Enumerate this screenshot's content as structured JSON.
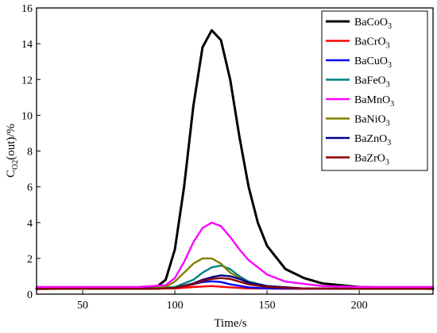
{
  "chart_data": {
    "type": "line",
    "xlabel": "Time/s",
    "ylabel": {
      "main": "C",
      "sub": "O2",
      "rest": "(out)/%"
    },
    "xlim": [
      25,
      240
    ],
    "ylim": [
      0,
      16
    ],
    "xticks": [
      50,
      100,
      150,
      200
    ],
    "yticks": [
      0,
      2,
      4,
      6,
      8,
      10,
      12,
      14,
      16
    ],
    "grid": false,
    "legend_position": "top-right",
    "series": [
      {
        "name": "BaCoO3",
        "label_main": "BaCoO",
        "label_sub": "3",
        "color": "#000000",
        "x": [
          25,
          80,
          90,
          95,
          100,
          105,
          110,
          115,
          120,
          125,
          130,
          135,
          140,
          145,
          150,
          160,
          170,
          180,
          200,
          220,
          240
        ],
        "y": [
          0.3,
          0.35,
          0.4,
          0.8,
          2.5,
          6.0,
          10.5,
          13.8,
          14.75,
          14.2,
          12.0,
          8.8,
          6.0,
          4.0,
          2.7,
          1.4,
          0.9,
          0.6,
          0.4,
          0.35,
          0.3
        ]
      },
      {
        "name": "BaCrO3",
        "label_main": "BaCrO",
        "label_sub": "3",
        "color": "#ff0000",
        "x": [
          25,
          80,
          100,
          110,
          120,
          130,
          140,
          160,
          200,
          240
        ],
        "y": [
          0.3,
          0.3,
          0.32,
          0.4,
          0.45,
          0.38,
          0.32,
          0.3,
          0.3,
          0.3
        ]
      },
      {
        "name": "BaCuO3",
        "label_main": "BaCuO",
        "label_sub": "3",
        "color": "#0000ff",
        "x": [
          25,
          80,
          100,
          110,
          115,
          120,
          125,
          130,
          140,
          150,
          170,
          200,
          240
        ],
        "y": [
          0.3,
          0.3,
          0.35,
          0.55,
          0.68,
          0.72,
          0.68,
          0.55,
          0.38,
          0.32,
          0.3,
          0.3,
          0.3
        ]
      },
      {
        "name": "BaFeO3",
        "label_main": "BaFeO",
        "label_sub": "3",
        "color": "#008080",
        "x": [
          25,
          90,
          100,
          110,
          115,
          120,
          125,
          130,
          135,
          140,
          150,
          170,
          200,
          240
        ],
        "y": [
          0.3,
          0.3,
          0.4,
          0.8,
          1.2,
          1.5,
          1.6,
          1.4,
          1.0,
          0.7,
          0.45,
          0.32,
          0.3,
          0.3
        ]
      },
      {
        "name": "BaMnO3",
        "label_main": "BaMnO",
        "label_sub": "3",
        "color": "#ff00ff",
        "x": [
          25,
          80,
          95,
          100,
          105,
          110,
          115,
          120,
          125,
          130,
          135,
          140,
          150,
          160,
          180,
          200,
          240
        ],
        "y": [
          0.4,
          0.4,
          0.5,
          0.9,
          1.8,
          2.9,
          3.7,
          4.0,
          3.8,
          3.2,
          2.5,
          1.9,
          1.1,
          0.7,
          0.45,
          0.4,
          0.4
        ]
      },
      {
        "name": "BaNiO3",
        "label_main": "BaNiO",
        "label_sub": "3",
        "color": "#808000",
        "x": [
          25,
          85,
          95,
          100,
          105,
          110,
          115,
          120,
          125,
          130,
          140,
          150,
          170,
          200,
          240
        ],
        "y": [
          0.3,
          0.3,
          0.4,
          0.7,
          1.2,
          1.7,
          2.0,
          2.0,
          1.7,
          1.2,
          0.6,
          0.4,
          0.32,
          0.3,
          0.3
        ]
      },
      {
        "name": "BaZnO3",
        "label_main": "BaZnO",
        "label_sub": "3",
        "color": "#00008b",
        "x": [
          25,
          90,
          100,
          110,
          115,
          120,
          125,
          130,
          135,
          140,
          150,
          170,
          200,
          240
        ],
        "y": [
          0.3,
          0.3,
          0.35,
          0.6,
          0.8,
          0.95,
          1.05,
          1.0,
          0.85,
          0.65,
          0.45,
          0.32,
          0.3,
          0.3
        ]
      },
      {
        "name": "BaZrO3",
        "label_main": "BaZrO",
        "label_sub": "3",
        "color": "#8b0000",
        "x": [
          25,
          90,
          100,
          110,
          115,
          120,
          125,
          130,
          135,
          140,
          150,
          170,
          200,
          240
        ],
        "y": [
          0.3,
          0.3,
          0.35,
          0.55,
          0.75,
          0.85,
          0.9,
          0.85,
          0.7,
          0.55,
          0.4,
          0.32,
          0.3,
          0.3
        ]
      }
    ]
  }
}
